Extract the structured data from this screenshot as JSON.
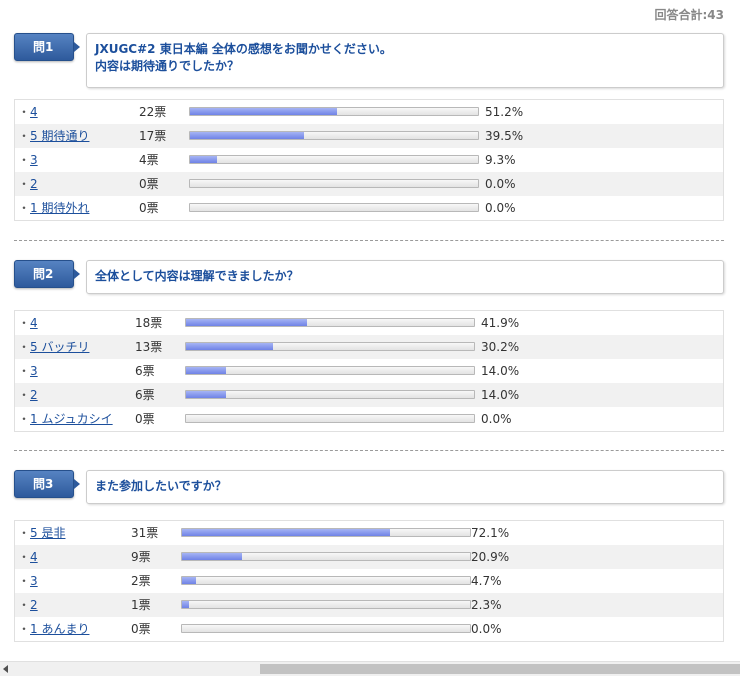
{
  "total_label": "回答合計:43",
  "questions": [
    {
      "badge": "問1",
      "text_lines": [
        "JXUGC#2 東日本編 全体の感想をお聞かせください。",
        "内容は期待通りでしたか？"
      ],
      "options": [
        {
          "label": "4",
          "votes": "22票",
          "percent_label": "51.2%",
          "percent": 51.2
        },
        {
          "label": "5 期待通り",
          "votes": "17票",
          "percent_label": "39.5%",
          "percent": 39.5
        },
        {
          "label": "3",
          "votes": "4票",
          "percent_label": "9.3%",
          "percent": 9.3
        },
        {
          "label": "2",
          "votes": "0票",
          "percent_label": "0.0%",
          "percent": 0.0
        },
        {
          "label": "1 期待外れ",
          "votes": "0票",
          "percent_label": "0.0%",
          "percent": 0.0
        }
      ]
    },
    {
      "badge": "問2",
      "text_lines": [
        "全体として内容は理解できましたか？"
      ],
      "options": [
        {
          "label": "4",
          "votes": "18票",
          "percent_label": "41.9%",
          "percent": 41.9
        },
        {
          "label": "5 バッチリ",
          "votes": "13票",
          "percent_label": "30.2%",
          "percent": 30.2
        },
        {
          "label": "3",
          "votes": "6票",
          "percent_label": "14.0%",
          "percent": 14.0
        },
        {
          "label": "2",
          "votes": "6票",
          "percent_label": "14.0%",
          "percent": 14.0
        },
        {
          "label": "1 ムジュカシイ",
          "votes": "0票",
          "percent_label": "0.0%",
          "percent": 0.0
        }
      ]
    },
    {
      "badge": "問3",
      "text_lines": [
        "また参加したいですか？"
      ],
      "options": [
        {
          "label": "5 是非",
          "votes": "31票",
          "percent_label": "72.1%",
          "percent": 72.1
        },
        {
          "label": "4",
          "votes": "9票",
          "percent_label": "20.9%",
          "percent": 20.9
        },
        {
          "label": "3",
          "votes": "2票",
          "percent_label": "4.7%",
          "percent": 4.7
        },
        {
          "label": "2",
          "votes": "1票",
          "percent_label": "2.3%",
          "percent": 2.3
        },
        {
          "label": "1 あんまり",
          "votes": "0票",
          "percent_label": "0.0%",
          "percent": 0.0
        }
      ]
    }
  ],
  "colors": {
    "badge": "#2e5a9c",
    "link": "#1c4f9c",
    "bar_fill": "#7d8fe9",
    "row_alt": "#f1f1f1"
  }
}
